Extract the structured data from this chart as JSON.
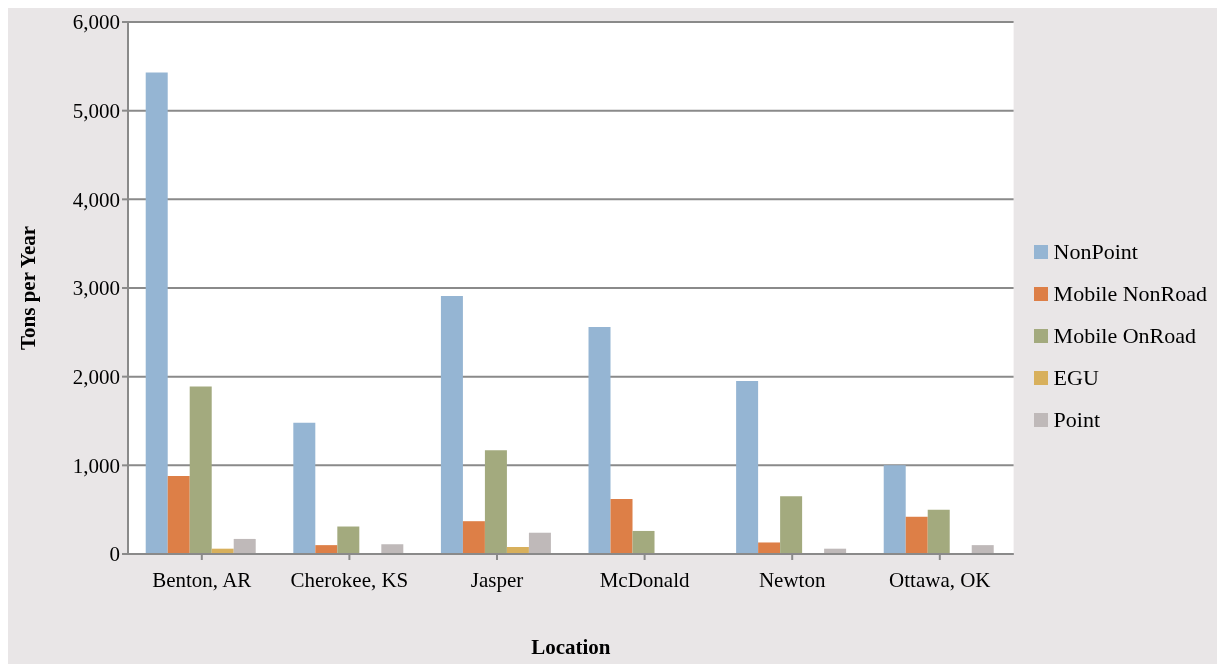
{
  "chart_data": {
    "type": "bar",
    "xlabel": "Location",
    "ylabel": "Tons per Year",
    "categories": [
      "Benton, AR",
      "Cherokee, KS",
      "Jasper",
      "McDonald",
      "Newton",
      "Ottawa, OK"
    ],
    "series": [
      {
        "name": "NonPoint",
        "color": "#95b5d3",
        "values": [
          5430,
          1480,
          2910,
          2560,
          1950,
          1000
        ]
      },
      {
        "name": "Mobile NonRoad",
        "color": "#dd7f47",
        "values": [
          880,
          100,
          370,
          620,
          130,
          420
        ]
      },
      {
        "name": "Mobile OnRoad",
        "color": "#a3aa7e",
        "values": [
          1890,
          310,
          1170,
          260,
          650,
          500
        ]
      },
      {
        "name": "EGU",
        "color": "#d8b05c",
        "values": [
          60,
          0,
          80,
          0,
          0,
          0
        ]
      },
      {
        "name": "Point",
        "color": "#bfb9b9",
        "values": [
          170,
          110,
          240,
          0,
          60,
          100
        ]
      }
    ],
    "ylim": [
      0,
      6000
    ],
    "yticks": [
      {
        "value": 0,
        "label": "0"
      },
      {
        "value": 1000,
        "label": "1,000"
      },
      {
        "value": 2000,
        "label": "2,000"
      },
      {
        "value": 3000,
        "label": "3,000"
      },
      {
        "value": 4000,
        "label": "4,000"
      },
      {
        "value": 5000,
        "label": "5,000"
      },
      {
        "value": 6000,
        "label": "6,000"
      }
    ],
    "grid": "y",
    "legend": "right"
  }
}
